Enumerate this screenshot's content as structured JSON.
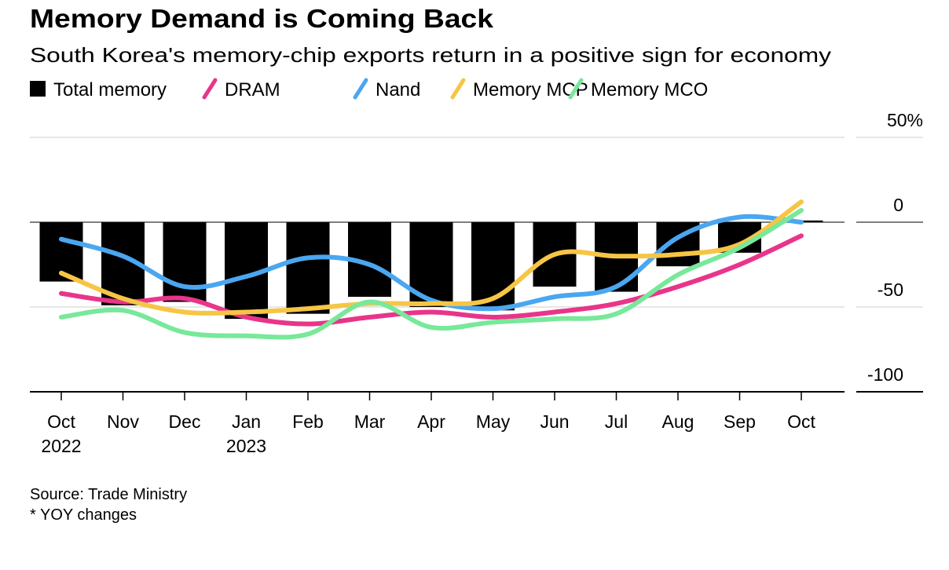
{
  "chart_data": {
    "type": "bar+line",
    "title": "Memory Demand is Coming Back",
    "subtitle": "South Korea's memory-chip exports return in a positive sign for economy",
    "categories": [
      "Oct",
      "Nov",
      "Dec",
      "Jan",
      "Feb",
      "Mar",
      "Apr",
      "May",
      "Jun",
      "Jul",
      "Aug",
      "Sep",
      "Oct"
    ],
    "category_years": [
      "2022",
      "",
      "",
      "2023",
      "",
      "",
      "",
      "",
      "",
      "",
      "",
      "",
      ""
    ],
    "ylim": [
      -100,
      50
    ],
    "y_ticks": [
      50,
      0,
      -50,
      -100
    ],
    "y_tick_labels": [
      "50%",
      "0",
      "-50",
      "-100"
    ],
    "y_axis_position": "right",
    "grid": true,
    "legend_position": "top-left",
    "bar_series": {
      "name": "Total memory",
      "color": "#000000",
      "values": [
        -35,
        -49,
        -47,
        -57,
        -54,
        -44,
        -50,
        -52,
        -38,
        -41,
        -26,
        -18,
        1
      ]
    },
    "series": [
      {
        "name": "DRAM",
        "color": "#e8358a",
        "values": [
          -42,
          -47,
          -45,
          -56,
          -60,
          -56,
          -53,
          -56,
          -53,
          -48,
          -38,
          -25,
          -8
        ]
      },
      {
        "name": "Nand",
        "color": "#4ba6f0",
        "values": [
          -10,
          -20,
          -38,
          -32,
          -21,
          -25,
          -46,
          -51,
          -44,
          -38,
          -9,
          3,
          0
        ]
      },
      {
        "name": "Memory MCP",
        "color": "#f7c545",
        "values": [
          -30,
          -45,
          -53,
          -53,
          -51,
          -48,
          -48,
          -45,
          -19,
          -20,
          -19,
          -13,
          12
        ]
      },
      {
        "name": "Memory MCO",
        "color": "#78e89a",
        "values": [
          -56,
          -52,
          -65,
          -67,
          -66,
          -47,
          -62,
          -59,
          -57,
          -54,
          -31,
          -15,
          7
        ]
      }
    ],
    "source": "Source: Trade Ministry",
    "note": "* YOY changes"
  }
}
